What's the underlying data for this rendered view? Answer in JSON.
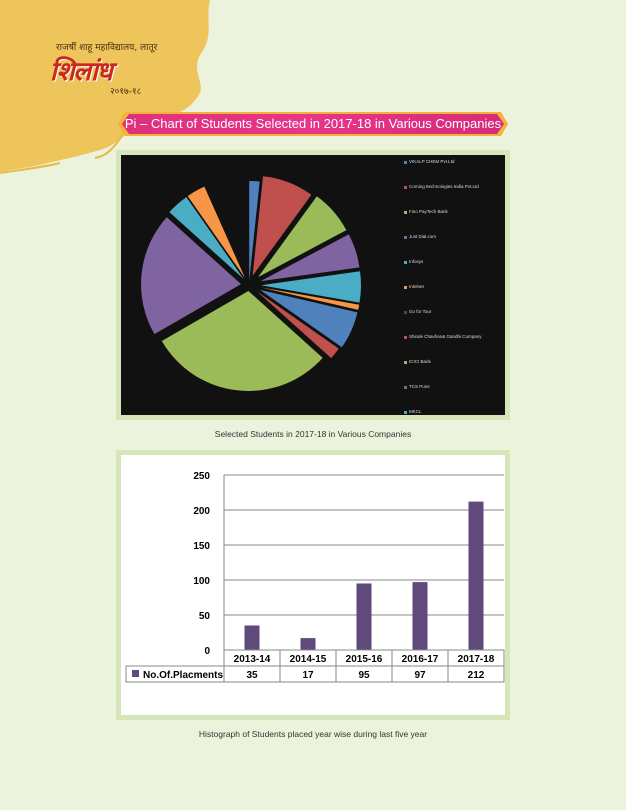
{
  "header": {
    "logo_top": "राजर्षी शाहू महाविद्यालय, लातूर",
    "logo_main": "शिलांध",
    "logo_sub": "२०१७-१८"
  },
  "banner": {
    "title": "Pi – Chart of Students Selected in 2017-18 in Various Companies"
  },
  "pie_chart": {
    "legend": [
      {
        "label": "VIKALP CHEM Pvt.Ltd",
        "color": "#4f81bd"
      },
      {
        "label": "Corning Itechnologies India Pvt.Ltd",
        "color": "#c0504d"
      },
      {
        "label": "Fino PayTech Bank",
        "color": "#9bbb59"
      },
      {
        "label": "Just Dial.com",
        "color": "#8064a2"
      },
      {
        "label": "Infosys",
        "color": "#4bacc6"
      },
      {
        "label": "Intelnet",
        "color": "#f79646"
      },
      {
        "label": "Go for Tour",
        "color": "#2c4d75"
      },
      {
        "label": "Shinde Chavhan& Gandhi Company",
        "color": "#c0504d"
      },
      {
        "label": "ICICI Bank",
        "color": "#9bbb59"
      },
      {
        "label": "TCS Pune",
        "color": "#8064a2"
      },
      {
        "label": "MKCL",
        "color": "#4bacc6"
      }
    ]
  },
  "chart_data": {
    "type": "bar",
    "categories": [
      "2013-14",
      "2014-15",
      "2015-16",
      "2016-17",
      "2017-18"
    ],
    "series": [
      {
        "name": "No.Of.Placments",
        "values": [
          35,
          17,
          95,
          97,
          212
        ]
      }
    ],
    "ylim": [
      0,
      250
    ],
    "yticks": [
      0,
      50,
      100,
      150,
      200,
      250
    ],
    "bar_color": "#604a7b",
    "grid": true
  },
  "captions": {
    "pie": "Selected Students in 2017-18 in Various Companies",
    "bar": "Histograph of Students placed year wise during last five year"
  }
}
